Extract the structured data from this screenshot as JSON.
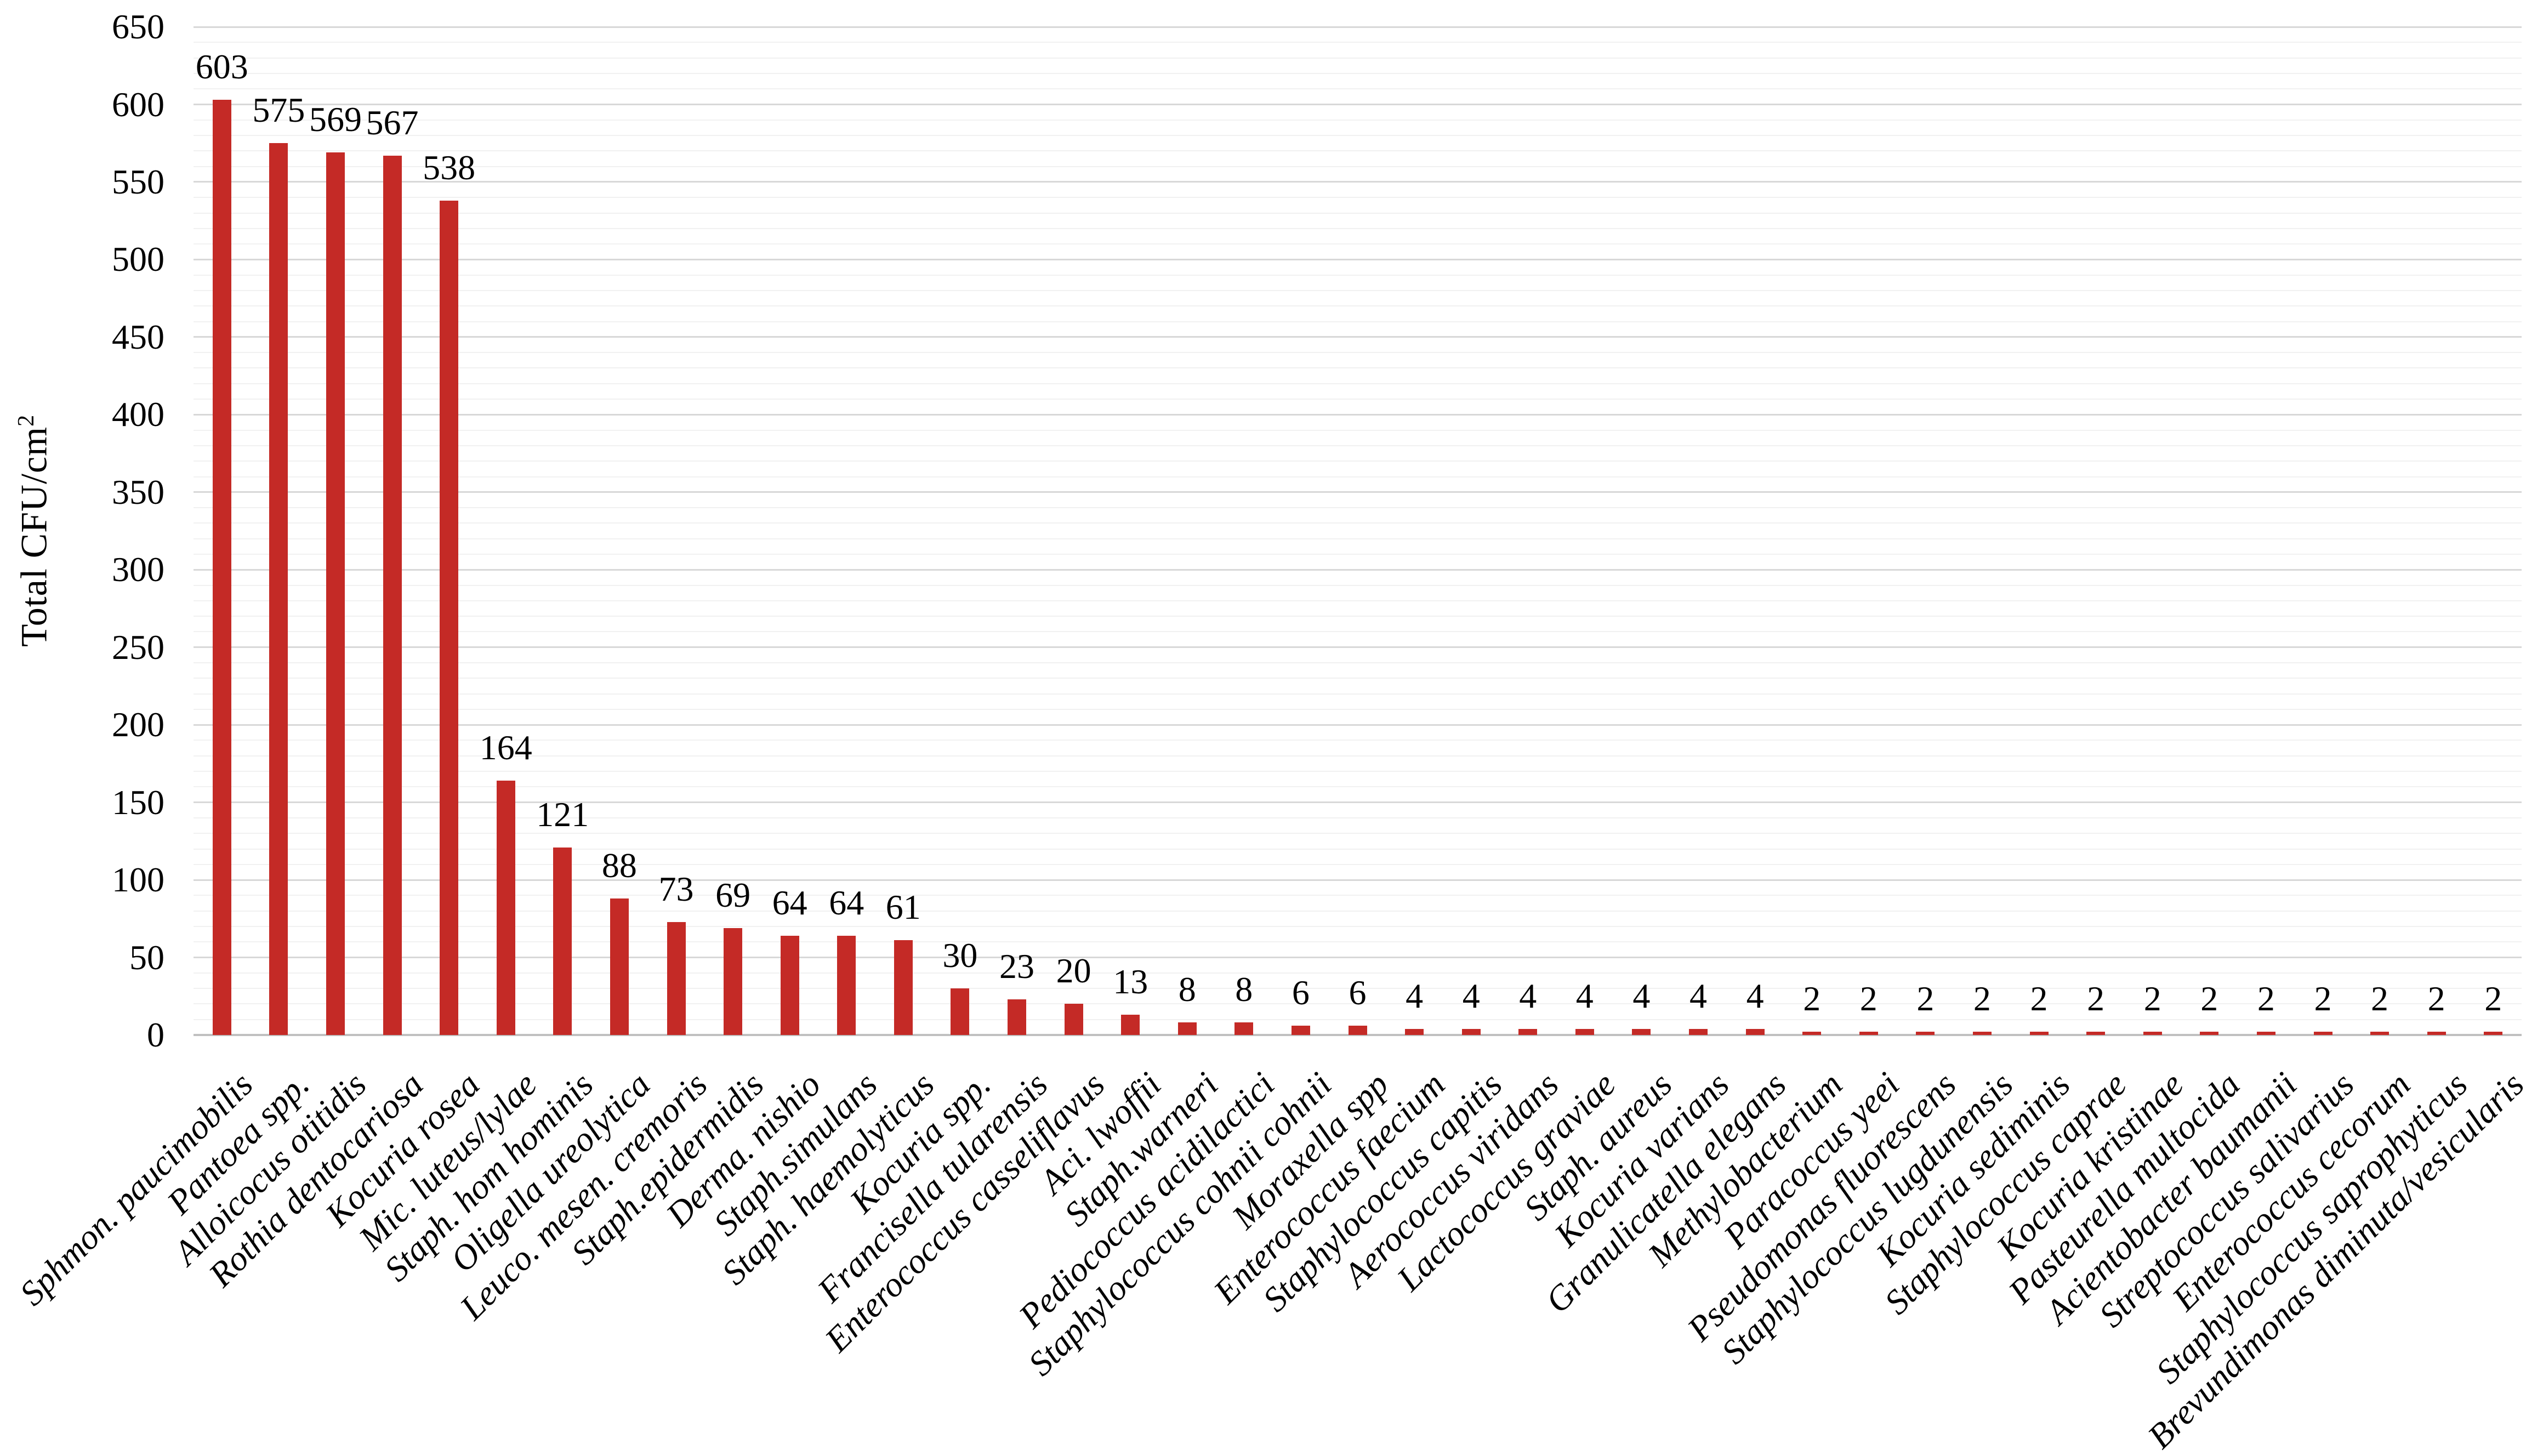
{
  "chart_data": {
    "type": "bar",
    "title": "",
    "ylabel": "Total CFU/cm²",
    "ylabel_base": "Total CFU/cm",
    "ylabel_sup": "2",
    "xlabel": "",
    "ylim": [
      0,
      650
    ],
    "ytick_step": 50,
    "minor_gridline_step": 10,
    "grid": true,
    "legend": "none",
    "x_label_rotation_deg": 45,
    "bar_color": "#c42a26",
    "yticks": [
      0,
      50,
      100,
      150,
      200,
      250,
      300,
      350,
      400,
      450,
      500,
      550,
      600,
      650
    ],
    "categories": [
      "Sphmon. paucimobilis",
      "Pantoea spp.",
      "Alloicocus otitidis",
      "Rothia dentocariosa",
      "Kocuria rosea",
      "Mic. luteus/lylae",
      "Staph. hom hominis",
      "Oligella ureolytica",
      "Leuco. mesen. cremoris",
      "Staph.epidermidis",
      "Derma. nishio",
      "Staph.simulans",
      "Staph. haemolyticus",
      "Kocuria spp.",
      "Francisella tularensis",
      "Enterococcus casseliflavus",
      "Aci. lwoffii",
      "Staph.warneri",
      "Pediococcus acidilactici",
      "Staphylococcus cohnii cohnii",
      "Moraxella spp",
      "Enterococcus faecium",
      "Staphylococcus capitis",
      "Aerococcus viridans",
      "Lactococcus graviae",
      "Staph. aureus",
      "Kocuria varians",
      "Granulicatella elegans",
      "Methylobacterium",
      "Paracoccus yeei",
      "Pseudomonas fluorescens",
      "Staphylococcus lugdunensis",
      "Kocuria sediminis",
      "Staphylococcus caprae",
      "Kocuria kristinae",
      "Pasteurella multocida",
      "Acientobacter baumanii",
      "Streptococcus salivarius",
      "Enterococcus cecorum",
      "Staphylococcus saprophyticus",
      "Brevundimonas diminuta/vesicularis"
    ],
    "values": [
      603,
      575,
      569,
      567,
      538,
      164,
      121,
      88,
      73,
      69,
      64,
      64,
      61,
      30,
      23,
      20,
      13,
      8,
      8,
      6,
      6,
      4,
      4,
      4,
      4,
      4,
      4,
      4,
      2,
      2,
      2,
      2,
      2,
      2,
      2,
      2,
      2,
      2,
      2,
      2,
      2
    ]
  }
}
